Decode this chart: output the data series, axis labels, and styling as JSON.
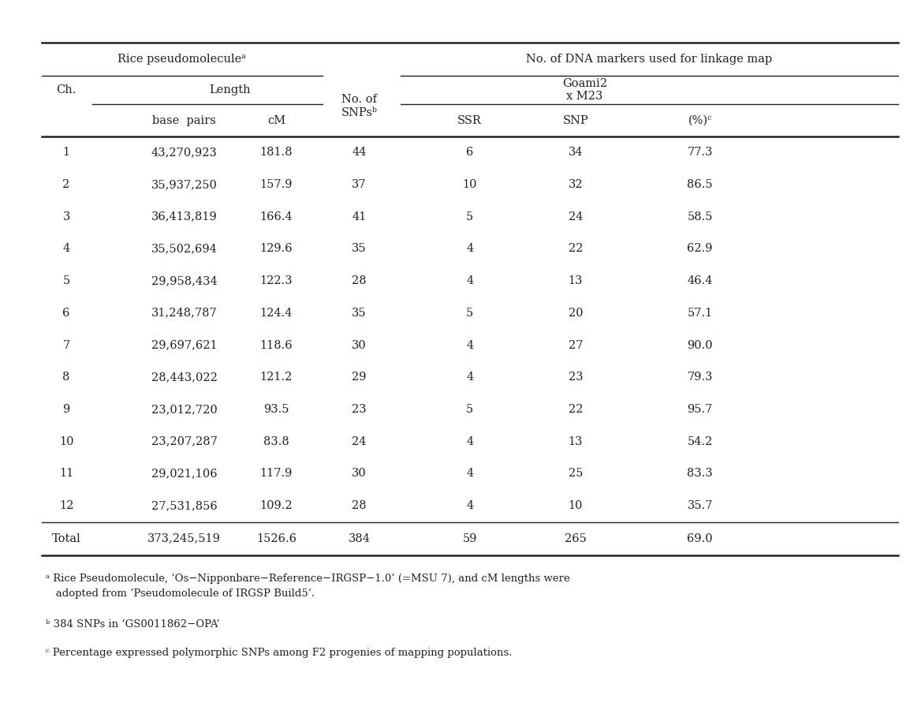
{
  "header_row1_left": "Rice pseudomoleculeᵃ",
  "header_row1_right": "No. of DNA markers used for linkage map",
  "header_row2_ch": "Ch.",
  "header_row2_length": "Length",
  "header_row2_snps": "No. of\nSNPsᵇ",
  "header_row2_goami": "Goami2\nx M23",
  "header_row3_bp": "base  pairs",
  "header_row3_cm": "cM",
  "header_row3_ssr": "SSR",
  "header_row3_snp": "SNP",
  "header_row3_pct": "(%)ᶜ",
  "chromosomes": [
    "1",
    "2",
    "3",
    "4",
    "5",
    "6",
    "7",
    "8",
    "9",
    "10",
    "11",
    "12"
  ],
  "base_pairs": [
    "43,270,923",
    "35,937,250",
    "36,413,819",
    "35,502,694",
    "29,958,434",
    "31,248,787",
    "29,697,621",
    "28,443,022",
    "23,012,720",
    "23,207,287",
    "29,021,106",
    "27,531,856"
  ],
  "cm": [
    "181.8",
    "157.9",
    "166.4",
    "129.6",
    "122.3",
    "124.4",
    "118.6",
    "121.2",
    "93.5",
    "83.8",
    "117.9",
    "109.2"
  ],
  "snps": [
    "44",
    "37",
    "41",
    "35",
    "28",
    "35",
    "30",
    "29",
    "23",
    "24",
    "30",
    "28"
  ],
  "ssr": [
    "6",
    "10",
    "5",
    "4",
    "4",
    "5",
    "4",
    "4",
    "5",
    "4",
    "4",
    "4"
  ],
  "snp_vals": [
    "34",
    "32",
    "24",
    "22",
    "13",
    "20",
    "27",
    "23",
    "22",
    "13",
    "25",
    "10"
  ],
  "pct": [
    "77.3",
    "86.5",
    "58.5",
    "62.9",
    "46.4",
    "57.1",
    "90.0",
    "79.3",
    "95.7",
    "54.2",
    "83.3",
    "35.7"
  ],
  "total_bp": "373,245,519",
  "total_cm": "1526.6",
  "total_snps": "384",
  "total_ssr": "59",
  "total_snp": "265",
  "total_pct": "69.0",
  "footnote_a_super": "ᵃ",
  "footnote_a_text": " Rice Pseudomolecule, ‘Os−Nipponbare−Reference−IRGSP−1.0’ (=MSU 7), and cM lengths were\n   adopted from ‘Pseudomolecule of IRGSP Build5’.",
  "footnote_b_super": "ᵇ",
  "footnote_b_text": " 384 SNPs in ‘GS0011862−OPA’",
  "footnote_c_super": "ᶜ",
  "footnote_c_text": " Percentage expressed polymorphic SNPs among F2 progenies of mapping populations.",
  "font_family": "DejaVu Serif",
  "text_color": "#222222",
  "line_color": "#222222",
  "bg_color": "#ffffff",
  "fontsize_header": 10.5,
  "fontsize_data": 10.5,
  "fontsize_footnote": 9.5
}
